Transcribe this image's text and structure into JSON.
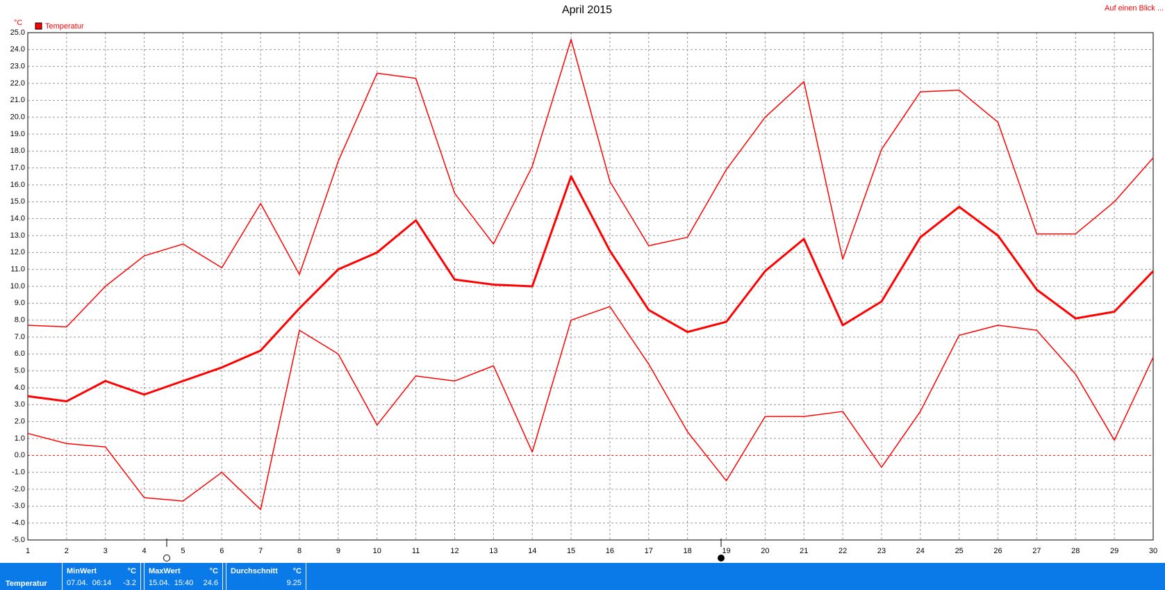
{
  "chart_data": {
    "type": "line",
    "title": "April 2015",
    "y_label": "°C",
    "legend": "Temperatur",
    "link": "Auf einen Blick ...",
    "x": [
      1,
      2,
      3,
      4,
      5,
      6,
      7,
      8,
      9,
      10,
      11,
      12,
      13,
      14,
      15,
      16,
      17,
      18,
      19,
      20,
      21,
      22,
      23,
      24,
      25,
      26,
      27,
      28,
      29,
      30
    ],
    "xlim": [
      1,
      30
    ],
    "xticks": [
      1,
      2,
      3,
      4,
      5,
      6,
      7,
      8,
      9,
      10,
      11,
      12,
      13,
      14,
      15,
      16,
      17,
      18,
      19,
      20,
      21,
      22,
      23,
      24,
      25,
      26,
      27,
      28,
      29,
      30
    ],
    "ylim": [
      -5,
      25
    ],
    "yticks": [
      {
        "value": -5,
        "label": "-5.0"
      },
      {
        "value": -4,
        "label": "-4.0"
      },
      {
        "value": -3,
        "label": "-3.0"
      },
      {
        "value": -2,
        "label": "-2.0"
      },
      {
        "value": -1,
        "label": "-1.0"
      },
      {
        "value": 0,
        "label": "0.0"
      },
      {
        "value": 1,
        "label": "1.0"
      },
      {
        "value": 2,
        "label": "2.0"
      },
      {
        "value": 3,
        "label": "3.0"
      },
      {
        "value": 4,
        "label": "4.0"
      },
      {
        "value": 5,
        "label": "5.0"
      },
      {
        "value": 6,
        "label": "6.0"
      },
      {
        "value": 7,
        "label": "7.0"
      },
      {
        "value": 8,
        "label": "8.0"
      },
      {
        "value": 9,
        "label": "9.0"
      },
      {
        "value": 10,
        "label": "10.0"
      },
      {
        "value": 11,
        "label": "11.0"
      },
      {
        "value": 12,
        "label": "12.0"
      },
      {
        "value": 13,
        "label": "13.0"
      },
      {
        "value": 14,
        "label": "14.0"
      },
      {
        "value": 15,
        "label": "15.0"
      },
      {
        "value": 16,
        "label": "16.0"
      },
      {
        "value": 17,
        "label": "17.0"
      },
      {
        "value": 18,
        "label": "18.0"
      },
      {
        "value": 19,
        "label": "19.0"
      },
      {
        "value": 20,
        "label": "20.0"
      },
      {
        "value": 21,
        "label": "21.0"
      },
      {
        "value": 22,
        "label": "22.0"
      },
      {
        "value": 23,
        "label": "23.0"
      },
      {
        "value": 24,
        "label": "24.0"
      },
      {
        "value": 25,
        "label": "25.0"
      }
    ],
    "grid": true,
    "color": "#ff0000",
    "series": [
      {
        "color": "#ff0000",
        "values": [
          7.7,
          7.6,
          10.0,
          11.8,
          12.5,
          11.1,
          14.9,
          10.7,
          17.4,
          22.6,
          22.3,
          15.5,
          12.5,
          17.1,
          24.6,
          16.2,
          12.4,
          12.9,
          16.9,
          20.0,
          22.1,
          11.6,
          18.1,
          21.5,
          21.6,
          19.7,
          13.1,
          13.1,
          15.0,
          17.6
        ]
      },
      {
        "color": "#ff0000",
        "values": [
          3.5,
          3.2,
          4.4,
          3.6,
          4.4,
          5.2,
          6.2,
          8.7,
          11.0,
          12.0,
          13.9,
          10.4,
          10.1,
          10.0,
          16.5,
          12.1,
          8.6,
          7.3,
          7.9,
          10.9,
          12.8,
          7.7,
          9.1,
          12.9,
          14.7,
          13.0,
          9.8,
          8.1,
          8.5,
          10.9
        ]
      },
      {
        "color": "#ff0000",
        "values": [
          1.3,
          0.7,
          0.5,
          -2.5,
          -2.7,
          -1.0,
          -3.2,
          7.4,
          6.0,
          1.8,
          4.7,
          4.4,
          5.3,
          0.2,
          8.0,
          8.8,
          5.4,
          1.4,
          -1.5,
          2.3,
          2.3,
          2.6,
          -0.7,
          2.6,
          7.1,
          7.7,
          7.4,
          4.8,
          0.9,
          5.8
        ]
      }
    ]
  },
  "footer": {
    "name": "Temperatur",
    "min": {
      "label": "MinWert",
      "unit": "°C",
      "time": "07.04.  06:14",
      "value": -3.2
    },
    "max": {
      "label": "MaxWert",
      "unit": "°C",
      "time": "15.04.  15:40",
      "value": 24.6
    },
    "avg": {
      "label": "Durchschnitt",
      "unit": "°C",
      "value": 9.25
    }
  }
}
